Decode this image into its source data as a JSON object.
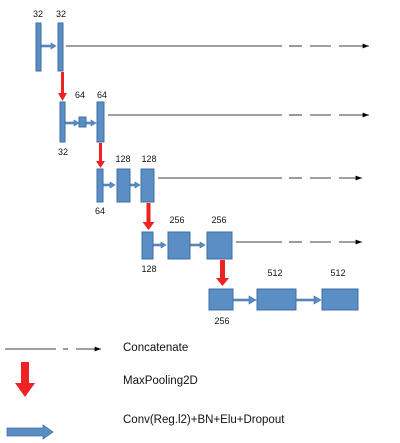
{
  "diagram": {
    "filters": {
      "l1_a": "32",
      "l1_b": "32",
      "l1_below": "32",
      "l2_a": "64",
      "l2_b": "64",
      "l2_below": "64",
      "l3_a": "128",
      "l3_b": "128",
      "l3_below": "128",
      "l4_a": "256",
      "l4_b": "256",
      "l4_below": "256",
      "l5_a": "512",
      "l5_b": "512"
    }
  },
  "legend": {
    "concatenate": "Concatenate",
    "maxpool": "MaxPooling2D",
    "conv": "Conv(Reg.l2)+BN+Elu+Dropout"
  },
  "colors": {
    "block_fill": "#5b8ec4",
    "block_stroke": "#3f6fa0",
    "pool_arrow": "#ee2222",
    "skip_line": "#000000"
  }
}
